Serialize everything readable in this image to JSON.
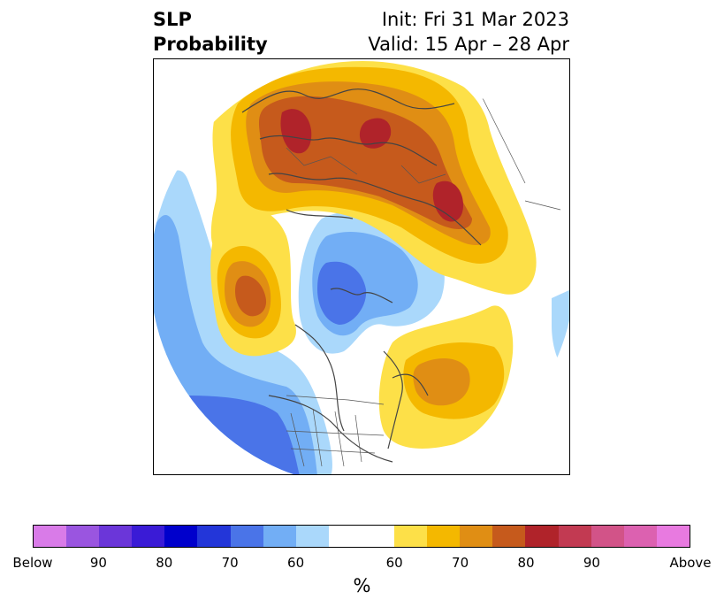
{
  "title": {
    "left_line1": "SLP",
    "left_line2": "Probability",
    "right_line1": "Init: Fri 31 Mar 2023",
    "right_line2": "Valid: 15 Apr – 28 Apr"
  },
  "colorbar": {
    "colors": [
      "#d97be8",
      "#9a55e0",
      "#6b36d9",
      "#3a1bd6",
      "#0000cc",
      "#2336d9",
      "#4a74e8",
      "#72aef5",
      "#aad8fb",
      "#ffffff",
      "#ffffff",
      "#fde048",
      "#f4b800",
      "#e08e14",
      "#c65a1c",
      "#b0232a",
      "#c23a52",
      "#d25388",
      "#dc61b0",
      "#e87ae0"
    ],
    "tick_labels": [
      "Below",
      "90",
      "80",
      "70",
      "60",
      "60",
      "70",
      "80",
      "90",
      "Above"
    ],
    "unit_label": "%"
  }
}
